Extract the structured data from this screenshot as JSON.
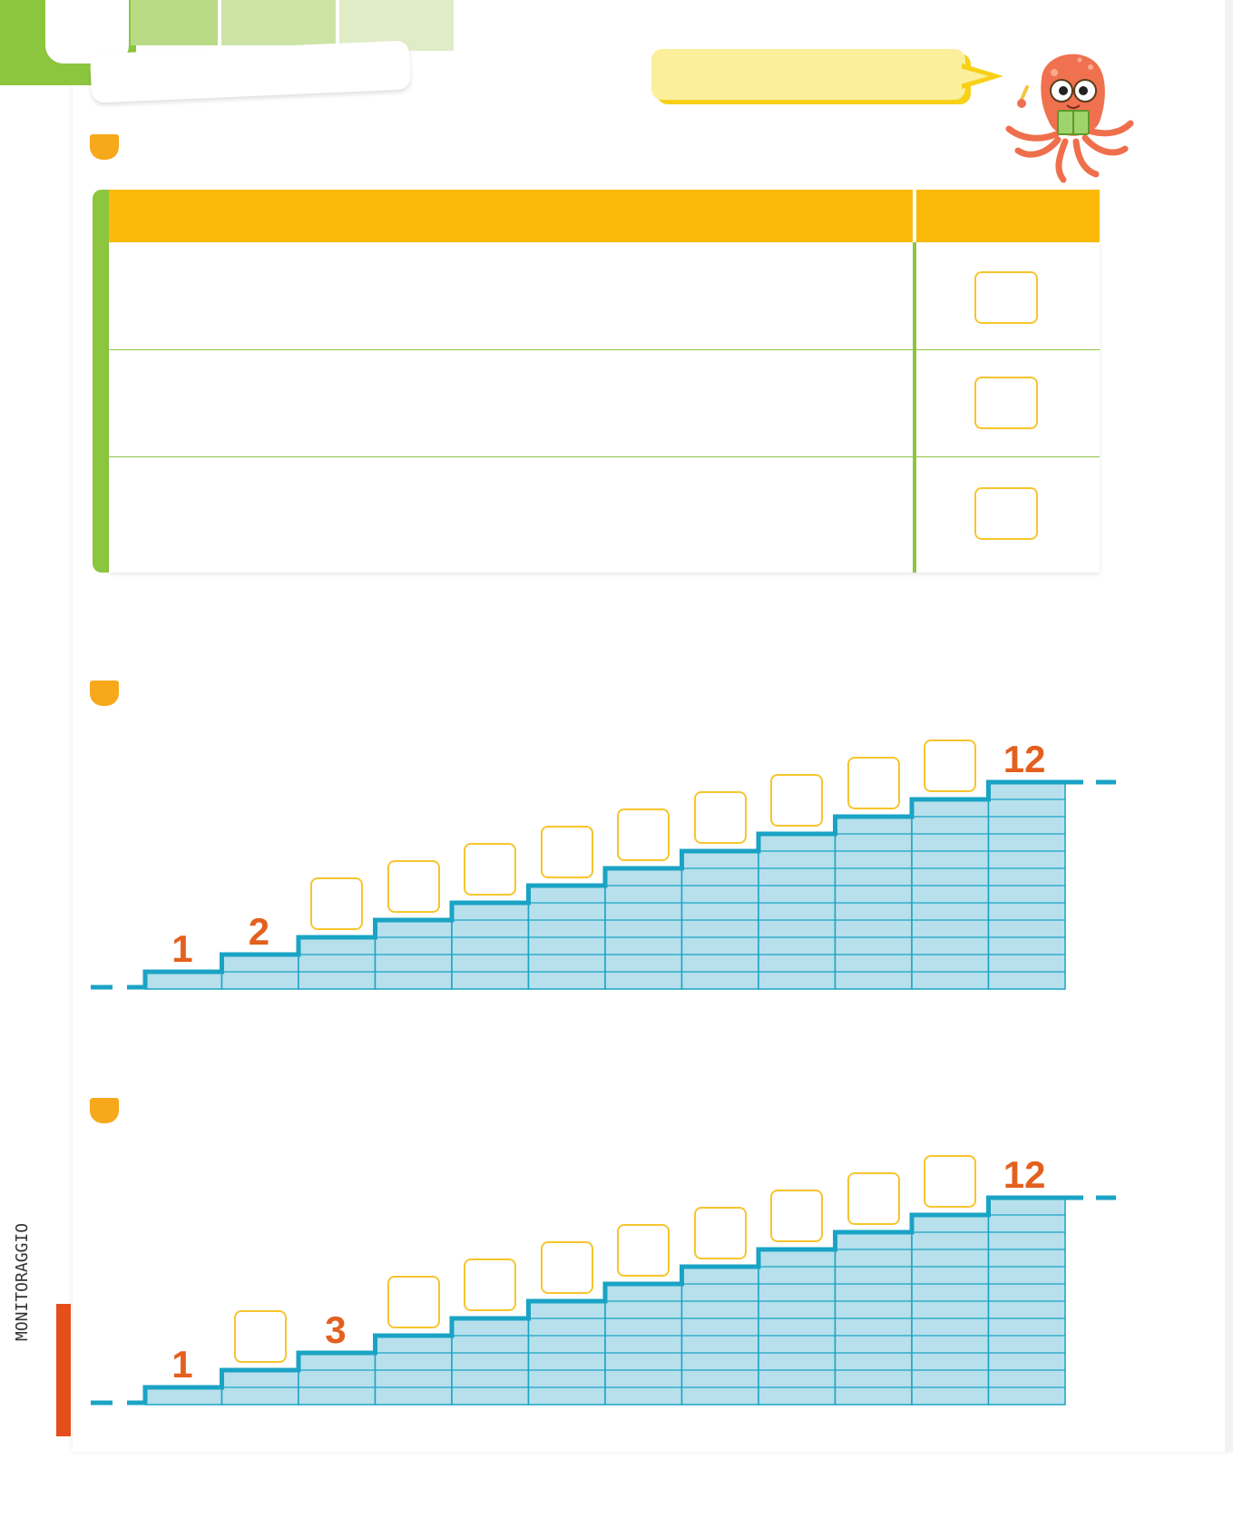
{
  "header": {
    "tab_label": "",
    "title": "",
    "speech_bubble": ""
  },
  "table": {
    "header_left": "",
    "header_right": "",
    "rows": [
      {
        "text": "",
        "answer": ""
      },
      {
        "text": "",
        "answer": ""
      },
      {
        "text": "",
        "answer": ""
      }
    ]
  },
  "staircase_1": {
    "labels": [
      "1",
      "2",
      "",
      "",
      "",
      "",
      "",
      "",
      "",
      "",
      "",
      "12"
    ],
    "given": [
      1,
      2,
      12
    ]
  },
  "staircase_2": {
    "labels": [
      "1",
      "",
      "3",
      "",
      "",
      "",
      "",
      "",
      "",
      "",
      "",
      "12"
    ],
    "given": [
      1,
      3,
      12
    ]
  },
  "side_label": "MONITORAGGIO",
  "colors": {
    "green": "#8cc63f",
    "table_header": "#fbba09",
    "bullet": "#f7a81b",
    "step_fill": "#b7e0ec",
    "step_line": "#1aa3c4",
    "number": "#e3601e",
    "box_border": "#f7c52d"
  }
}
